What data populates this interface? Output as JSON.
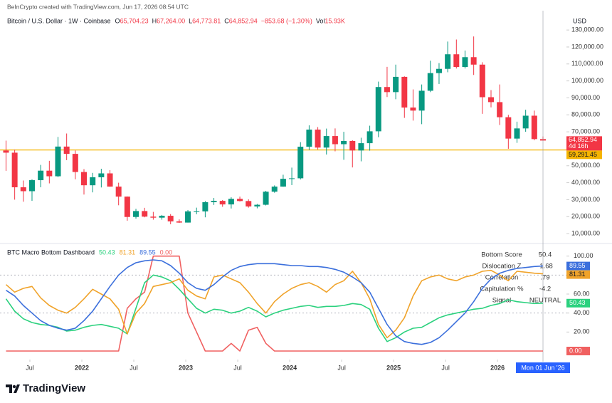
{
  "header": {
    "attribution": "BeInCrypto created with TradingView.com, Jun 17, 2026 08:54 UTC"
  },
  "chart_data": [
    {
      "type": "candlestick",
      "title": "Bitcoin / U.S. Dollar · 1W · Coinbase",
      "legend": [
        {
          "key": "O",
          "value": "65,704.23"
        },
        {
          "key": "H",
          "value": "67,264.00"
        },
        {
          "key": "L",
          "value": "64,773.81"
        },
        {
          "key": "C",
          "value": "64,852.94"
        }
      ],
      "change": "−853.68 (−1.30%)",
      "volume": {
        "key": "Vol",
        "value": "15.93K"
      },
      "y_axis_label": "USD",
      "x": [
        "2021-04",
        "2021-05",
        "2021-06",
        "2021-07",
        "2021-08",
        "2021-09",
        "2021-10",
        "2021-11",
        "2021-12",
        "2022-01",
        "2022-02",
        "2022-03",
        "2022-04",
        "2022-05",
        "2022-06",
        "2022-07",
        "2022-08",
        "2022-09",
        "2022-10",
        "2022-11",
        "2022-12",
        "2023-01",
        "2023-02",
        "2023-03",
        "2023-04",
        "2023-05",
        "2023-06",
        "2023-07",
        "2023-08",
        "2023-09",
        "2023-10",
        "2023-11",
        "2023-12",
        "2024-01",
        "2024-02",
        "2024-03",
        "2024-04",
        "2024-05",
        "2024-06",
        "2024-07",
        "2024-08",
        "2024-09",
        "2024-10",
        "2024-11",
        "2024-12",
        "2025-01",
        "2025-02",
        "2025-03",
        "2025-04",
        "2025-05",
        "2025-06",
        "2025-07",
        "2025-08",
        "2025-09",
        "2025-10",
        "2025-11",
        "2025-12",
        "2026-01",
        "2026-02",
        "2026-03",
        "2026-04",
        "2026-05",
        "2026-06"
      ],
      "open": [
        59000,
        57700,
        37300,
        35000,
        41500,
        47100,
        43800,
        61300,
        57000,
        46300,
        38500,
        43200,
        45500,
        37700,
        31800,
        19800,
        23300,
        20000,
        19400,
        20500,
        17200,
        16500,
        23100,
        23100,
        28500,
        29300,
        27200,
        30500,
        29200,
        26000,
        27000,
        34700,
        37700,
        42300,
        42600,
        61200,
        71300,
        60700,
        67500,
        62700,
        64600,
        59000,
        63300,
        70300,
        96400,
        93400,
        102400,
        84300,
        82500,
        94200,
        104600,
        107100,
        115700,
        108200,
        114000,
        109600,
        90400,
        87500,
        78600,
        66000,
        72000,
        79500,
        65704.23
      ],
      "high": [
        64800,
        59500,
        41300,
        42000,
        50500,
        52900,
        67000,
        69000,
        59000,
        48000,
        45800,
        48200,
        47400,
        40000,
        31900,
        24600,
        25200,
        22800,
        21000,
        21500,
        18400,
        23900,
        25300,
        29200,
        31000,
        29800,
        31400,
        31800,
        30200,
        27500,
        35200,
        38400,
        44700,
        48900,
        63900,
        73800,
        72800,
        71900,
        72000,
        70000,
        65000,
        66500,
        73600,
        99600,
        108300,
        109600,
        102700,
        95000,
        97900,
        111900,
        110500,
        123200,
        124400,
        117900,
        126200,
        111000,
        94600,
        97900,
        80000,
        76000,
        83000,
        82500,
        67264
      ],
      "low": [
        47000,
        30000,
        28800,
        29300,
        37300,
        39600,
        43300,
        53300,
        42000,
        33000,
        34300,
        37200,
        37600,
        26700,
        17600,
        18800,
        19600,
        18200,
        18200,
        15500,
        16300,
        16500,
        21400,
        19600,
        26900,
        25800,
        24800,
        28900,
        25300,
        24900,
        26600,
        34100,
        37600,
        38600,
        41900,
        59300,
        59600,
        56600,
        58500,
        53500,
        49000,
        52600,
        58900,
        66800,
        90500,
        89200,
        78200,
        76600,
        74500,
        93400,
        98200,
        105100,
        107300,
        107300,
        103500,
        80600,
        84400,
        74000,
        60000,
        63500,
        70000,
        65000,
        64773.81
      ],
      "close": [
        57700,
        37300,
        35000,
        41500,
        47100,
        43800,
        61300,
        57000,
        46300,
        38500,
        43200,
        45500,
        37700,
        31800,
        19800,
        23300,
        20000,
        19400,
        20500,
        17200,
        16500,
        23100,
        23100,
        28500,
        29300,
        27200,
        30500,
        29200,
        26000,
        27000,
        34700,
        37700,
        42300,
        42600,
        61200,
        71300,
        60700,
        67500,
        62700,
        64600,
        59000,
        63300,
        70300,
        96400,
        93400,
        102400,
        84300,
        82500,
        94200,
        104600,
        107100,
        115700,
        108200,
        114000,
        109600,
        90400,
        87500,
        78600,
        66000,
        72000,
        79500,
        65704.23,
        64852.94
      ],
      "up_color": "#089981",
      "down_color": "#f23645",
      "ylim": [
        5000,
        133000
      ],
      "yticks": [
        {
          "value": 130000,
          "label": "130,000.00"
        },
        {
          "value": 120000,
          "label": "120,000.00"
        },
        {
          "value": 110000,
          "label": "110,000.00"
        },
        {
          "value": 100000,
          "label": "100,000.00"
        },
        {
          "value": 90000,
          "label": "90,000.00"
        },
        {
          "value": 80000,
          "label": "80,000.00"
        },
        {
          "value": 70000,
          "label": "70,000.00"
        },
        {
          "value": 50000,
          "label": "50,000.00"
        },
        {
          "value": 40000,
          "label": "40,000.00"
        },
        {
          "value": 30000,
          "label": "30,000.00"
        },
        {
          "value": 20000,
          "label": "20,000.00"
        },
        {
          "value": 10000,
          "label": "10,000.00"
        }
      ],
      "last_price_label": "64,852.94",
      "countdown": "4d 16h",
      "hline": {
        "value": 59291.45,
        "label": "59,291.45",
        "color": "#f5b400"
      }
    },
    {
      "type": "line",
      "title": "BTC Macro Bottom Dashboard",
      "x": [
        "2021-04",
        "2021-05",
        "2021-06",
        "2021-07",
        "2021-08",
        "2021-09",
        "2021-10",
        "2021-11",
        "2021-12",
        "2022-01",
        "2022-02",
        "2022-03",
        "2022-04",
        "2022-05",
        "2022-06",
        "2022-07",
        "2022-08",
        "2022-09",
        "2022-10",
        "2022-11",
        "2022-12",
        "2023-01",
        "2023-02",
        "2023-03",
        "2023-04",
        "2023-05",
        "2023-06",
        "2023-07",
        "2023-08",
        "2023-09",
        "2023-10",
        "2023-11",
        "2023-12",
        "2024-01",
        "2024-02",
        "2024-03",
        "2024-04",
        "2024-05",
        "2024-06",
        "2024-07",
        "2024-08",
        "2024-09",
        "2024-10",
        "2024-11",
        "2024-12",
        "2025-01",
        "2025-02",
        "2025-03",
        "2025-04",
        "2025-05",
        "2025-06",
        "2025-07",
        "2025-08",
        "2025-09",
        "2025-10",
        "2025-11",
        "2025-12",
        "2026-01",
        "2026-02",
        "2026-03",
        "2026-04",
        "2026-05",
        "2026-06"
      ],
      "series": [
        {
          "color": "#2bd17e",
          "values": [
            55,
            42,
            34,
            30,
            28,
            27,
            25,
            21,
            22,
            25,
            27,
            28,
            26,
            24,
            18,
            45,
            72,
            80,
            78,
            74,
            65,
            55,
            45,
            40,
            44,
            43,
            40,
            42,
            46,
            42,
            36,
            40,
            43,
            45,
            47,
            48,
            46,
            47,
            47,
            48,
            50,
            49,
            44,
            24,
            10,
            14,
            20,
            24,
            25,
            30,
            35,
            38,
            40,
            42,
            44,
            45,
            48,
            50,
            54,
            52,
            51,
            50,
            50.43
          ]
        },
        {
          "color": "#f0a32a",
          "values": [
            70,
            62,
            66,
            68,
            56,
            48,
            43,
            40,
            46,
            55,
            65,
            60,
            55,
            44,
            18,
            40,
            50,
            68,
            70,
            72,
            76,
            64,
            58,
            55,
            78,
            80,
            76,
            72,
            62,
            50,
            40,
            52,
            60,
            66,
            70,
            72,
            68,
            62,
            70,
            74,
            84,
            72,
            55,
            28,
            14,
            22,
            35,
            58,
            74,
            78,
            80,
            76,
            74,
            78,
            80,
            84,
            85,
            80,
            74,
            84,
            83,
            82,
            81.31
          ]
        },
        {
          "color": "#3b6fdc",
          "values": [
            64,
            58,
            48,
            40,
            32,
            27,
            24,
            22,
            24,
            32,
            42,
            55,
            68,
            80,
            88,
            93,
            95,
            96,
            95,
            90,
            82,
            72,
            66,
            64,
            70,
            78,
            85,
            89,
            91,
            92,
            92,
            92,
            91,
            90,
            90,
            89,
            89,
            88,
            86,
            83,
            78,
            72,
            62,
            45,
            28,
            16,
            10,
            8,
            7,
            9,
            14,
            22,
            31,
            40,
            52,
            66,
            76,
            82,
            85,
            87,
            88,
            89,
            89.55
          ]
        },
        {
          "color": "#f06060",
          "last_label": "0.00",
          "values": [
            0,
            0,
            0,
            0,
            0,
            0,
            0,
            0,
            0,
            0,
            0,
            0,
            0,
            0,
            45,
            55,
            62,
            100,
            100,
            100,
            100,
            40,
            20,
            0,
            0,
            0,
            8,
            0,
            22,
            25,
            8,
            0,
            0,
            0,
            0,
            0,
            0,
            0,
            0,
            0,
            0,
            0,
            0,
            0,
            0,
            0,
            0,
            0,
            0,
            0,
            0,
            0,
            0,
            0,
            0,
            0,
            0,
            0,
            0,
            0,
            0,
            0,
            0
          ]
        }
      ],
      "ylim": [
        -3,
        111
      ],
      "yticks": [
        {
          "value": 100,
          "label": "100.00"
        },
        {
          "value": 60,
          "label": "60.00"
        },
        {
          "value": 40,
          "label": "40.00"
        },
        {
          "value": 20,
          "label": "20.00"
        }
      ],
      "hlines": [
        80,
        40
      ],
      "xticks": [
        {
          "value": "2021-07",
          "label": "Jul"
        },
        {
          "value": "2022-01",
          "label": "2022"
        },
        {
          "value": "2022-07",
          "label": "Jul"
        },
        {
          "value": "2023-01",
          "label": "2023"
        },
        {
          "value": "2023-07",
          "label": "Jul"
        },
        {
          "value": "2024-01",
          "label": "2024"
        },
        {
          "value": "2024-07",
          "label": "Jul"
        },
        {
          "value": "2025-01",
          "label": "2025"
        },
        {
          "value": "2025-07",
          "label": "Jul"
        },
        {
          "value": "2026-01",
          "label": "2026"
        }
      ],
      "crosshair": {
        "value": "2026-06",
        "label": "Mon 01 Jun '26"
      },
      "table": {
        "rows": [
          [
            "Bottom Score",
            "50.4"
          ],
          [
            "Dislocation Z",
            "-1.68"
          ],
          [
            "Correlation",
            ".79"
          ],
          [
            "Capitulation %",
            "-4.2"
          ],
          [
            "Signal",
            "NEUTRAL"
          ]
        ]
      }
    }
  ],
  "footer": {
    "logo": "TradingView"
  }
}
